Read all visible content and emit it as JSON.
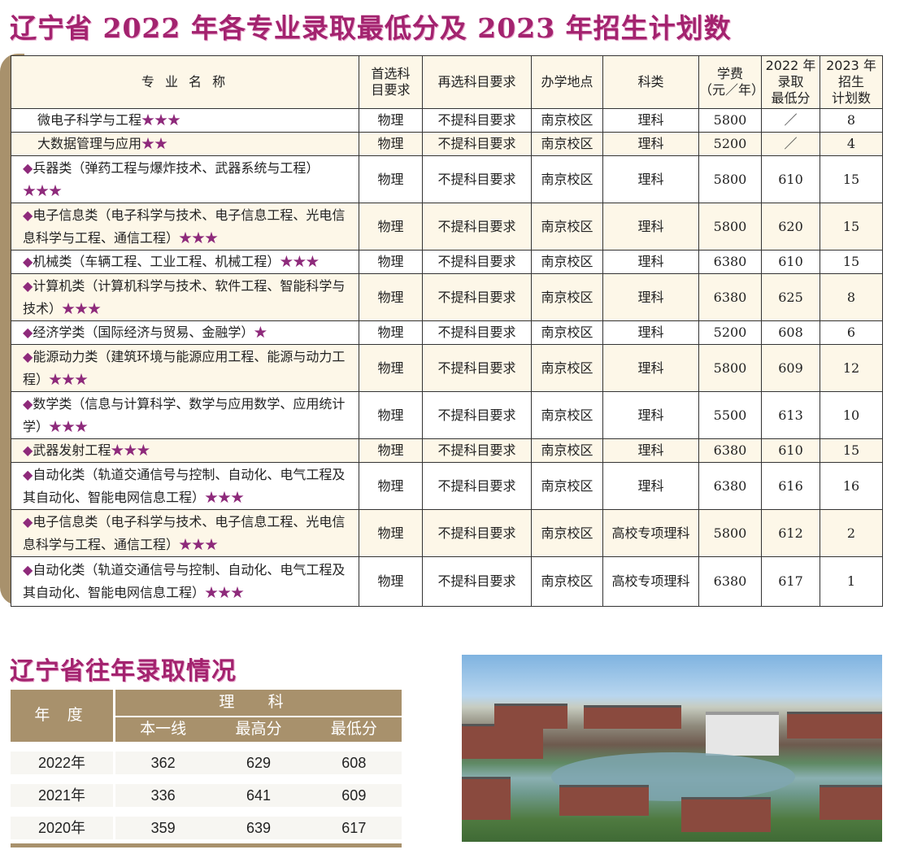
{
  "title_main": "辽宁省 2022 年各专业录取最低分及 2023 年招生计划数",
  "table": {
    "headers": [
      "专 业 名 称",
      "首选科\n目要求",
      "再选科目要求",
      "办学地点",
      "科类",
      "学费\n（元／年）",
      "2022 年\n录取\n最低分",
      "2023 年\n招生\n计划数"
    ],
    "rows": [
      {
        "diamond": false,
        "name": "微电子科学与工程",
        "stars": "★★★",
        "first": "物理",
        "second": "不提科目要求",
        "campus": "南京校区",
        "category": "理科",
        "fee": "5800",
        "min2022": "／",
        "plan2023": "8"
      },
      {
        "diamond": false,
        "name": "大数据管理与应用",
        "stars": "★★",
        "first": "物理",
        "second": "不提科目要求",
        "campus": "南京校区",
        "category": "理科",
        "fee": "5200",
        "min2022": "／",
        "plan2023": "4"
      },
      {
        "diamond": true,
        "name": "兵器类（弹药工程与爆炸技术、武器系统与工程）",
        "stars": "★★★",
        "first": "物理",
        "second": "不提科目要求",
        "campus": "南京校区",
        "category": "理科",
        "fee": "5800",
        "min2022": "610",
        "plan2023": "15"
      },
      {
        "diamond": true,
        "name": "电子信息类（电子科学与技术、电子信息工程、光电信息科学与工程、通信工程）",
        "stars": "★★★",
        "first": "物理",
        "second": "不提科目要求",
        "campus": "南京校区",
        "category": "理科",
        "fee": "5800",
        "min2022": "620",
        "plan2023": "15"
      },
      {
        "diamond": true,
        "name": "机械类（车辆工程、工业工程、机械工程）",
        "stars": "★★★",
        "first": "物理",
        "second": "不提科目要求",
        "campus": "南京校区",
        "category": "理科",
        "fee": "6380",
        "min2022": "610",
        "plan2023": "15"
      },
      {
        "diamond": true,
        "name": "计算机类（计算机科学与技术、软件工程、智能科学与技术）",
        "stars": "★★★",
        "first": "物理",
        "second": "不提科目要求",
        "campus": "南京校区",
        "category": "理科",
        "fee": "6380",
        "min2022": "625",
        "plan2023": "8"
      },
      {
        "diamond": true,
        "name": "经济学类（国际经济与贸易、金融学）",
        "stars": "★",
        "first": "物理",
        "second": "不提科目要求",
        "campus": "南京校区",
        "category": "理科",
        "fee": "5200",
        "min2022": "608",
        "plan2023": "6"
      },
      {
        "diamond": true,
        "name": "能源动力类（建筑环境与能源应用工程、能源与动力工程）",
        "stars": "★★★",
        "first": "物理",
        "second": "不提科目要求",
        "campus": "南京校区",
        "category": "理科",
        "fee": "5800",
        "min2022": "609",
        "plan2023": "12"
      },
      {
        "diamond": true,
        "name": "数学类（信息与计算科学、数学与应用数学、应用统计学）",
        "stars": "★★★",
        "first": "物理",
        "second": "不提科目要求",
        "campus": "南京校区",
        "category": "理科",
        "fee": "5500",
        "min2022": "613",
        "plan2023": "10"
      },
      {
        "diamond": true,
        "name": "武器发射工程",
        "stars": "★★★",
        "first": "物理",
        "second": "不提科目要求",
        "campus": "南京校区",
        "category": "理科",
        "fee": "6380",
        "min2022": "610",
        "plan2023": "15"
      },
      {
        "diamond": true,
        "name": "自动化类（轨道交通信号与控制、自动化、电气工程及其自动化、智能电网信息工程）",
        "stars": "★★★",
        "first": "物理",
        "second": "不提科目要求",
        "campus": "南京校区",
        "category": "理科",
        "fee": "6380",
        "min2022": "616",
        "plan2023": "16"
      },
      {
        "diamond": true,
        "name": "电子信息类（电子科学与技术、电子信息工程、光电信息科学与工程、通信工程）",
        "stars": "★★★",
        "first": "物理",
        "second": "不提科目要求",
        "campus": "南京校区",
        "category": "高校专项理科",
        "fee": "5800",
        "min2022": "612",
        "plan2023": "2"
      },
      {
        "diamond": true,
        "name": "自动化类（轨道交通信号与控制、自动化、电气工程及其自动化、智能电网信息工程）",
        "stars": "★★★",
        "first": "物理",
        "second": "不提科目要求",
        "campus": "南京校区",
        "category": "高校专项理科",
        "fee": "6380",
        "min2022": "617",
        "plan2023": "1"
      }
    ]
  },
  "title_history": "辽宁省往年录取情况",
  "history": {
    "year_header": "年 度",
    "group_header": "理 科",
    "sub_headers": [
      "本一线",
      "最高分",
      "最低分"
    ],
    "rows": [
      {
        "year": "2022年",
        "values": [
          "362",
          "629",
          "608"
        ]
      },
      {
        "year": "2021年",
        "values": [
          "336",
          "641",
          "609"
        ]
      },
      {
        "year": "2020年",
        "values": [
          "359",
          "639",
          "617"
        ]
      }
    ]
  },
  "colors": {
    "title": "#a3236f",
    "star": "#8e2a7b",
    "accent_brown": "#a8916c",
    "row_cream": "#fdf7e8"
  }
}
